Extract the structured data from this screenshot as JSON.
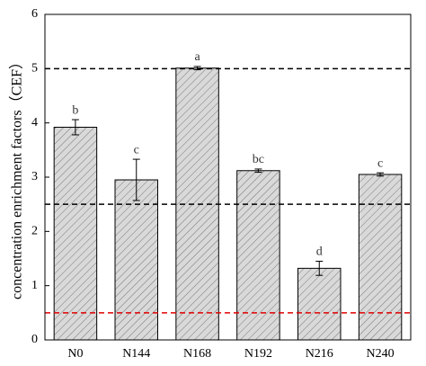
{
  "chart_data": {
    "type": "bar",
    "y_label": "concentration enrichment factors（CEF）",
    "categories": [
      "N0",
      "N144",
      "N168",
      "N192",
      "N216",
      "N240"
    ],
    "values": [
      3.92,
      2.95,
      5.01,
      3.12,
      1.32,
      3.05
    ],
    "errors": [
      0.14,
      0.38,
      0.03,
      0.03,
      0.13,
      0.03
    ],
    "significance_letters": [
      "b",
      "c",
      "a",
      "bc",
      "d",
      "c"
    ],
    "color": "#d9d9d9",
    "reference_lines": [
      {
        "value": 5,
        "color": "#000000"
      },
      {
        "value": 2.5,
        "color": "#000000"
      },
      {
        "value": 0.5,
        "color": "#e00000"
      }
    ],
    "ylim": [
      0,
      6
    ],
    "yticks": [
      0,
      1,
      2,
      3,
      4,
      5,
      6
    ]
  }
}
